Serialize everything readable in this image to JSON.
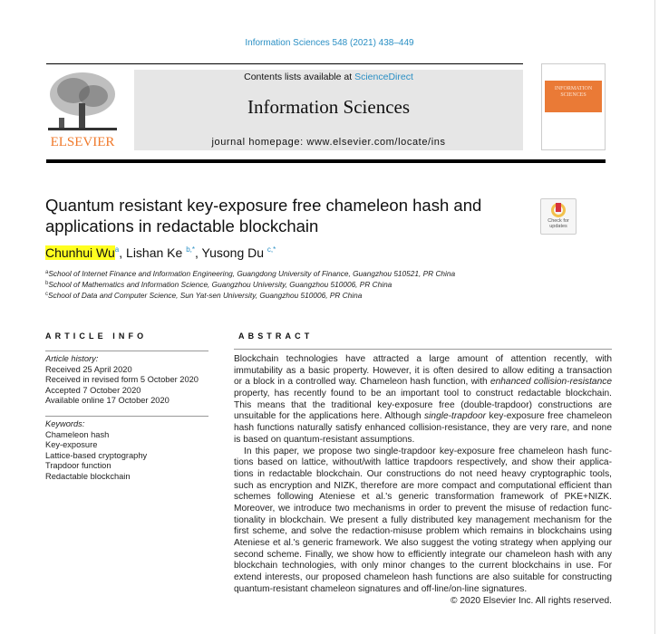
{
  "header": {
    "citation": "Information Sciences 548 (2021) 438–449",
    "contents_prefix": "Contents lists available at ",
    "contents_link": "ScienceDirect",
    "journal_title": "Information Sciences",
    "homepage": "journal homepage: www.elsevier.com/locate/ins",
    "publisher_logo": "ELSEVIER",
    "cover_title": "INFORMATION SCIENCES",
    "badge": "Check for updates"
  },
  "colors": {
    "link": "#2a8fc4",
    "elsevier_orange": "#f07a2c",
    "highlight": "#ffff20"
  },
  "article": {
    "title_lines": [
      "Quantum resistant key-exposure free chameleon hash and",
      "applications in redactable blockchain"
    ],
    "authors": [
      {
        "name": "Chunhui Wu",
        "sup": "a"
      },
      {
        "name": "Lishan Ke",
        "sup": "b,*"
      },
      {
        "name": "Yusong Du",
        "sup": "c,*"
      }
    ],
    "affiliations": [
      {
        "sup": "a",
        "text": "School of Internet Finance and Information Engineering, Guangdong University of Finance, Guangzhou 510521, PR China"
      },
      {
        "sup": "b",
        "text": "School of Mathematics and Information Science, Guangzhou University, Guangzhou 510006, PR China"
      },
      {
        "sup": "c",
        "text": "School of Data and Computer Science, Sun Yat-sen University, Guangzhou 510006, PR China"
      }
    ]
  },
  "article_info": {
    "heading": "ARTICLE INFO",
    "history_label": "Article history:",
    "history": [
      "Received 25 April 2020",
      "Received in revised form 5 October 2020",
      "Accepted 7 October 2020",
      "Available online 17 October 2020"
    ],
    "keywords_label": "Keywords:",
    "keywords": [
      "Chameleon hash",
      "Key-exposure",
      "Lattice-based cryptography",
      "Trapdoor function",
      "Redactable blockchain"
    ]
  },
  "abstract": {
    "heading": "ABSTRACT",
    "lines": [
      [
        {
          "t": "Blockchain technologies have attracted a large amount of attention recently, with"
        }
      ],
      [
        {
          "t": "immutability as a basic property. However, it is often desired to allow editing a transaction"
        }
      ],
      [
        {
          "t": "or a block in a controlled way. Chameleon hash function, with "
        },
        {
          "t": "enhanced collision-resistance",
          "i": true
        }
      ],
      [
        {
          "t": "property, has recently found to be an important tool to construct redactable blockchain."
        }
      ],
      [
        {
          "t": "This means that the traditional key-exposure free (double-trapdoor) constructions are"
        }
      ],
      [
        {
          "t": "unsuitable for the applications here. Although "
        },
        {
          "t": "single-trapdoor",
          "i": true
        },
        {
          "t": " key-exposure free chameleon"
        }
      ],
      [
        {
          "t": "hash functions naturally satisfy enhanced collision-resistance, they are very rare, and none"
        }
      ],
      [
        {
          "t": "is based on quantum-resistant assumptions."
        }
      ],
      [
        {
          "t": "In this paper, we propose two single-trapdoor key-exposure free chameleon hash func-"
        }
      ],
      [
        {
          "t": "tions based on lattice, without/with lattice trapdoors respectively, and show their applica-"
        }
      ],
      [
        {
          "t": "tions in redactable blockchain. Our constructions do not need heavy cryptographic tools,"
        }
      ],
      [
        {
          "t": "such as encryption and NIZK, therefore are more compact and computational efficient than"
        }
      ],
      [
        {
          "t": "schemes following Ateniese et al.'s generic transformation framework of PKE+NIZK."
        }
      ],
      [
        {
          "t": "Moreover, we introduce two mechanisms in order to prevent the misuse of redaction func-"
        }
      ],
      [
        {
          "t": "tionality in blockchain. We present a fully distributed key management mechanism for the"
        }
      ],
      [
        {
          "t": "first scheme, and solve the redaction-misuse problem which remains in blockchains using"
        }
      ],
      [
        {
          "t": "Ateniese et al.'s generic framework. We also suggest the voting strategy when applying our"
        }
      ],
      [
        {
          "t": "second scheme. Finally, we show how to efficiently integrate our chameleon hash with any"
        }
      ],
      [
        {
          "t": "blockchain technologies, with only minor changes to the current blockchains in use. For"
        }
      ],
      [
        {
          "t": "extend interests, our proposed chameleon hash functions are also suitable for constructing"
        }
      ],
      [
        {
          "t": "quantum-resistant chameleon signatures and off-line/on-line signatures."
        }
      ]
    ],
    "copyright": "© 2020 Elsevier Inc. All rights reserved."
  }
}
